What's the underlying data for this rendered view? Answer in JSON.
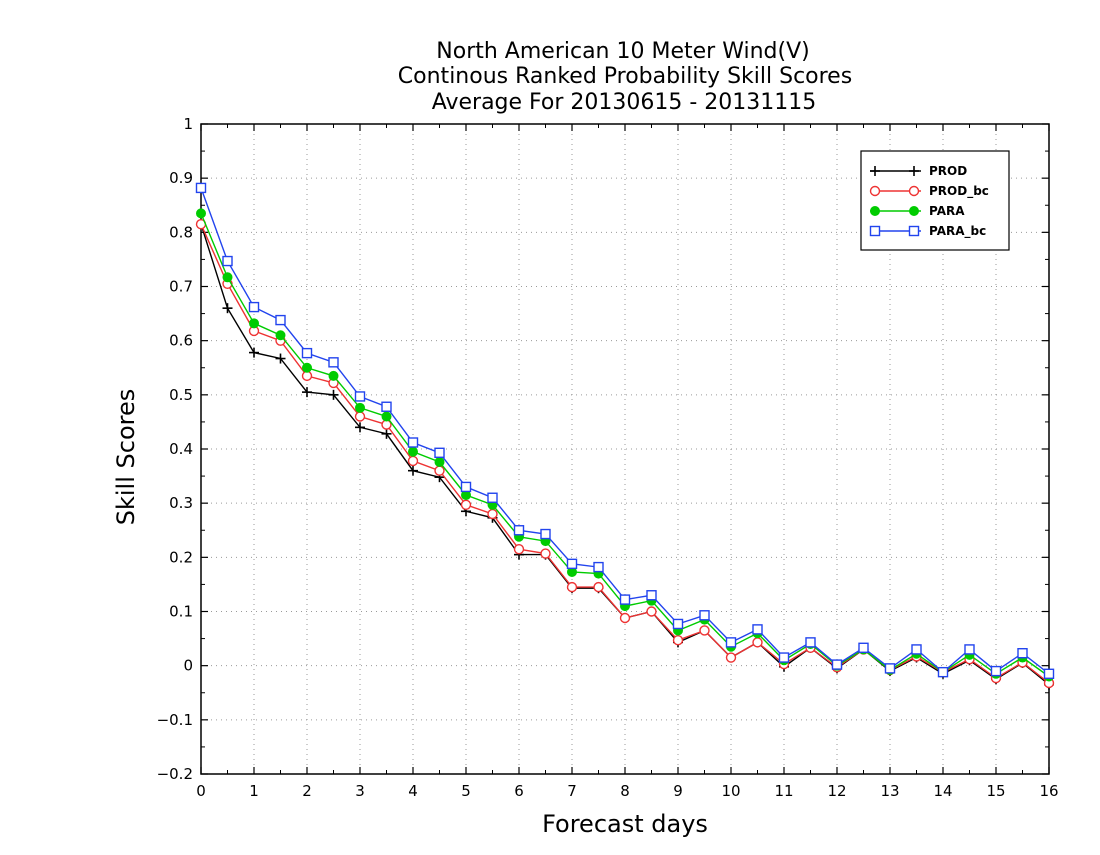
{
  "chart_data": {
    "type": "line",
    "title": [
      "North American 10 Meter Wind(V)",
      "Continous Ranked Probability Skill Scores",
      "Average For 20130615 - 20131115"
    ],
    "xlabel": "Forecast days",
    "ylabel": "Skill Scores",
    "xlim": [
      0,
      16
    ],
    "ylim": [
      -0.2,
      1
    ],
    "xticks": [
      0,
      1,
      2,
      3,
      4,
      5,
      6,
      7,
      8,
      9,
      10,
      11,
      12,
      13,
      14,
      15,
      16
    ],
    "yticks": [
      -0.2,
      -0.1,
      0,
      0.1,
      0.2,
      0.3,
      0.4,
      0.5,
      0.6,
      0.7,
      0.8,
      0.9,
      1
    ],
    "ytick_labels": [
      "−0.2",
      "−0.1",
      "0",
      "0.1",
      "0.2",
      "0.3",
      "0.4",
      "0.5",
      "0.6",
      "0.7",
      "0.8",
      "0.9",
      "1"
    ],
    "grid": true,
    "legend_position": "top-right",
    "x": [
      0,
      0.5,
      1,
      1.5,
      2,
      2.5,
      3,
      3.5,
      4,
      4.5,
      5,
      5.5,
      6,
      6.5,
      7,
      7.5,
      8,
      8.5,
      9,
      9.5,
      10,
      10.5,
      11,
      11.5,
      12,
      12.5,
      13,
      13.5,
      14,
      14.5,
      15,
      15.5,
      16
    ],
    "series": [
      {
        "name": "PROD",
        "color": "#000000",
        "marker": "plus",
        "values": [
          0.815,
          0.66,
          0.578,
          0.567,
          0.505,
          0.5,
          0.44,
          0.428,
          0.36,
          0.348,
          0.285,
          0.273,
          0.205,
          0.205,
          0.143,
          0.143,
          0.088,
          0.1,
          0.043,
          0.065,
          0.015,
          0.043,
          -0.002,
          0.033,
          -0.005,
          0.03,
          -0.01,
          0.015,
          -0.015,
          0.01,
          -0.025,
          0.005,
          -0.035
        ]
      },
      {
        "name": "PROD_bc",
        "color": "#ee3333",
        "marker": "circle-open",
        "values": [
          0.815,
          0.705,
          0.618,
          0.6,
          0.535,
          0.522,
          0.46,
          0.445,
          0.378,
          0.36,
          0.297,
          0.28,
          0.215,
          0.207,
          0.145,
          0.145,
          0.088,
          0.1,
          0.047,
          0.065,
          0.015,
          0.043,
          0.003,
          0.033,
          -0.003,
          0.03,
          -0.008,
          0.017,
          -0.012,
          0.012,
          -0.023,
          0.006,
          -0.032
        ]
      },
      {
        "name": "PARA",
        "color": "#00cc00",
        "marker": "circle-filled",
        "values": [
          0.835,
          0.717,
          0.632,
          0.61,
          0.55,
          0.535,
          0.476,
          0.46,
          0.395,
          0.376,
          0.315,
          0.297,
          0.238,
          0.23,
          0.173,
          0.17,
          0.11,
          0.12,
          0.065,
          0.085,
          0.035,
          0.06,
          0.01,
          0.04,
          0.0,
          0.03,
          -0.008,
          0.022,
          -0.012,
          0.02,
          -0.015,
          0.015,
          -0.02
        ]
      },
      {
        "name": "PARA_bc",
        "color": "#2244ee",
        "marker": "square-open",
        "values": [
          0.882,
          0.747,
          0.662,
          0.638,
          0.577,
          0.56,
          0.497,
          0.478,
          0.412,
          0.393,
          0.33,
          0.31,
          0.25,
          0.243,
          0.188,
          0.182,
          0.122,
          0.13,
          0.077,
          0.093,
          0.043,
          0.067,
          0.015,
          0.043,
          0.002,
          0.033,
          -0.005,
          0.03,
          -0.012,
          0.03,
          -0.01,
          0.023,
          -0.015
        ]
      }
    ]
  }
}
